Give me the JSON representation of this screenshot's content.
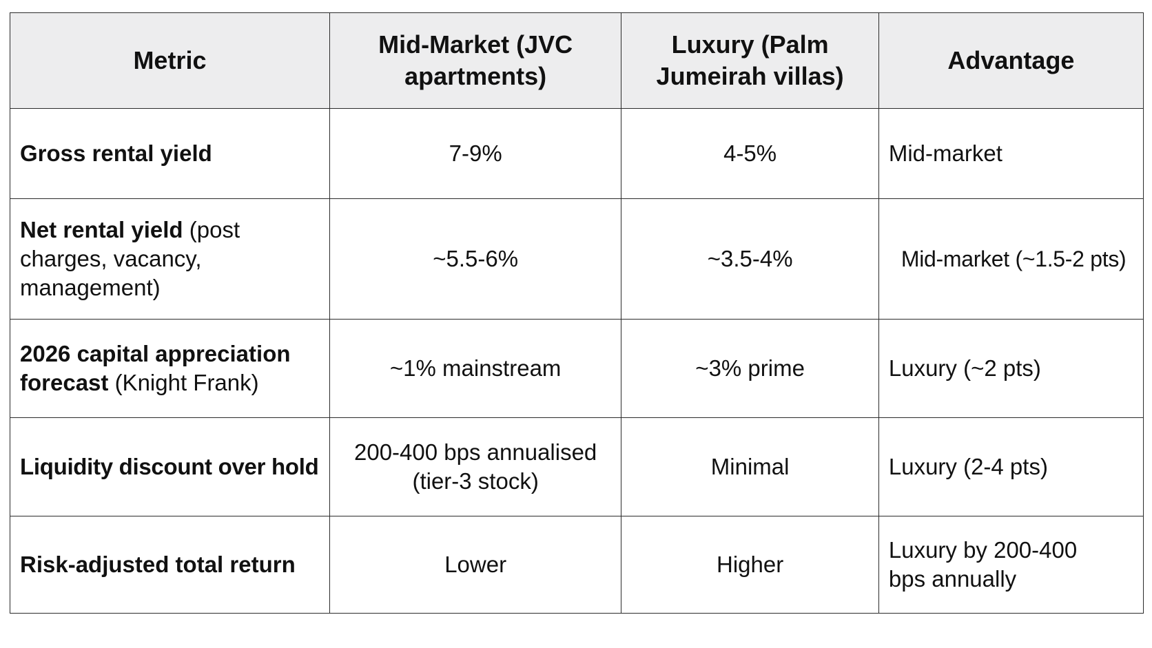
{
  "table": {
    "headers": [
      "Metric",
      "Mid-Market (JVC apartments)",
      "Luxury (Palm Jumeirah villas)",
      "Advantage"
    ],
    "rows": [
      {
        "metric": "Gross rental yield",
        "metric_note": "",
        "mid_market": "7-9%",
        "luxury": "4-5%",
        "advantage": "Mid-market"
      },
      {
        "metric": "Net rental yield",
        "metric_note": "(post charges, vacancy, management)",
        "mid_market": "~5.5-6%",
        "luxury": "~3.5-4%",
        "advantage": "Mid-market (~1.5-2 pts)"
      },
      {
        "metric": "2026 capital appreciation forecast",
        "metric_note": "(Knight Frank)",
        "mid_market": "~1% mainstream",
        "luxury": "~3% prime",
        "advantage": "Luxury (~2 pts)"
      },
      {
        "metric": "Liquidity discount over hold",
        "metric_note": "",
        "mid_market": "200-400 bps annualised (tier-3 stock)",
        "luxury": "Minimal",
        "advantage": "Luxury (2-4 pts)"
      },
      {
        "metric": "Risk-adjusted total return",
        "metric_note": "",
        "mid_market": "Lower",
        "luxury": "Higher",
        "advantage": "Luxury by 200-400 bps annually"
      }
    ]
  }
}
